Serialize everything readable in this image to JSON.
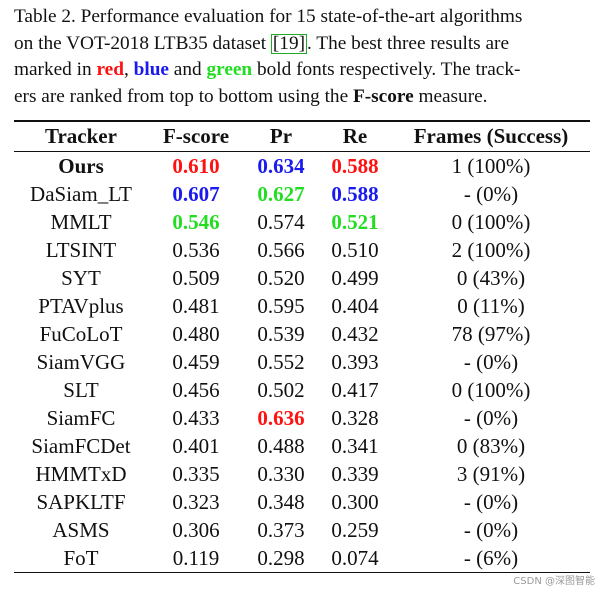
{
  "caption": {
    "line1": "Table 2. Performance evaluation for 15 state-of-the-art algorithms",
    "line2_pre": "on the VOT-2018 LTB35 dataset ",
    "line2_ref": "[19]",
    "line2_post": ".  The best three results are",
    "line3_pre": "marked in ",
    "line3_red": "red",
    "line3_mid1": ", ",
    "line3_blue": "blue",
    "line3_mid2": " and ",
    "line3_green": "green",
    "line3_post": " bold fonts respectively. The track-",
    "line4_pre": "ers are ranked from top to bottom using the ",
    "line4_bold": "F-score",
    "line4_post": " measure."
  },
  "colors": {
    "red": "#ff1111",
    "blue": "#1a1aee",
    "green": "#22dd22"
  },
  "table": {
    "headers": [
      "Tracker",
      "F-score",
      "Pr",
      "Re",
      "Frames (Success)"
    ],
    "rows": [
      {
        "tracker": "Ours",
        "tracker_bold": true,
        "fscore": "0.610",
        "fscore_hl": "red",
        "pr": "0.634",
        "pr_hl": "blue",
        "re": "0.588",
        "re_hl": "red",
        "frames": "1 (100%)"
      },
      {
        "tracker": "DaSiam_LT",
        "fscore": "0.607",
        "fscore_hl": "blue",
        "pr": "0.627",
        "pr_hl": "green",
        "re": "0.588",
        "re_hl": "blue",
        "frames": "- (0%)"
      },
      {
        "tracker": "MMLT",
        "fscore": "0.546",
        "fscore_hl": "green",
        "pr": "0.574",
        "re": "0.521",
        "re_hl": "green",
        "frames": "0 (100%)"
      },
      {
        "tracker": "LTSINT",
        "fscore": "0.536",
        "pr": "0.566",
        "re": "0.510",
        "frames": "2 (100%)"
      },
      {
        "tracker": "SYT",
        "fscore": "0.509",
        "pr": "0.520",
        "re": "0.499",
        "frames": "0 (43%)"
      },
      {
        "tracker": "PTAVplus",
        "fscore": "0.481",
        "pr": "0.595",
        "re": "0.404",
        "frames": "0 (11%)"
      },
      {
        "tracker": "FuCoLoT",
        "fscore": "0.480",
        "pr": "0.539",
        "re": "0.432",
        "frames": "78 (97%)"
      },
      {
        "tracker": "SiamVGG",
        "fscore": "0.459",
        "pr": "0.552",
        "re": "0.393",
        "frames": "- (0%)"
      },
      {
        "tracker": "SLT",
        "fscore": "0.456",
        "pr": "0.502",
        "re": "0.417",
        "frames": "0 (100%)"
      },
      {
        "tracker": "SiamFC",
        "fscore": "0.433",
        "pr": "0.636",
        "pr_hl": "red",
        "re": "0.328",
        "frames": "- (0%)"
      },
      {
        "tracker": "SiamFCDet",
        "fscore": "0.401",
        "pr": "0.488",
        "re": "0.341",
        "frames": "0 (83%)"
      },
      {
        "tracker": "HMMTxD",
        "fscore": "0.335",
        "pr": "0.330",
        "re": "0.339",
        "frames": "3 (91%)"
      },
      {
        "tracker": "SAPKLTF",
        "fscore": "0.323",
        "pr": "0.348",
        "re": "0.300",
        "frames": "- (0%)"
      },
      {
        "tracker": "ASMS",
        "fscore": "0.306",
        "pr": "0.373",
        "re": "0.259",
        "frames": "- (0%)"
      },
      {
        "tracker": "FoT",
        "fscore": "0.119",
        "pr": "0.298",
        "re": "0.074",
        "frames": "- (6%)"
      }
    ]
  },
  "watermark": "CSDN @深图智能"
}
